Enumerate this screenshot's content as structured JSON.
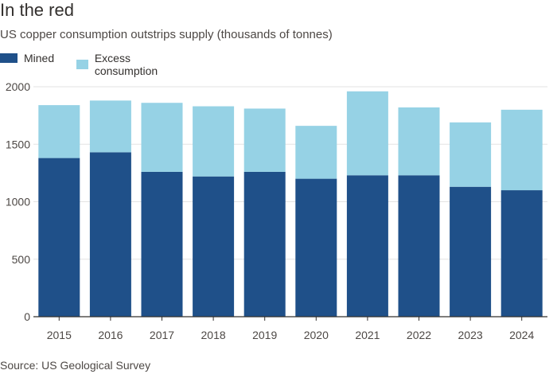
{
  "title": "In the red",
  "subtitle": "US copper consumption outstrips supply (thousands of tonnes)",
  "source": "Source: US Geological Survey",
  "colors": {
    "mined": "#1f5089",
    "excess": "#96d2e5",
    "grid": "#e3e3e3",
    "axis": "#33302e"
  },
  "chart_data": {
    "type": "bar",
    "stacked": true,
    "categories": [
      "2015",
      "2016",
      "2017",
      "2018",
      "2019",
      "2020",
      "2021",
      "2022",
      "2023",
      "2024"
    ],
    "series": [
      {
        "name": "Mined",
        "values": [
          1380,
          1430,
          1260,
          1220,
          1260,
          1200,
          1230,
          1230,
          1130,
          1100
        ]
      },
      {
        "name": "Excess consumption",
        "values": [
          460,
          450,
          600,
          610,
          550,
          460,
          730,
          590,
          560,
          700
        ]
      }
    ],
    "yticks": [
      0,
      500,
      1000,
      1500,
      2000
    ],
    "ylim": [
      0,
      2000
    ],
    "grid": true,
    "legend_position": "top-left"
  }
}
